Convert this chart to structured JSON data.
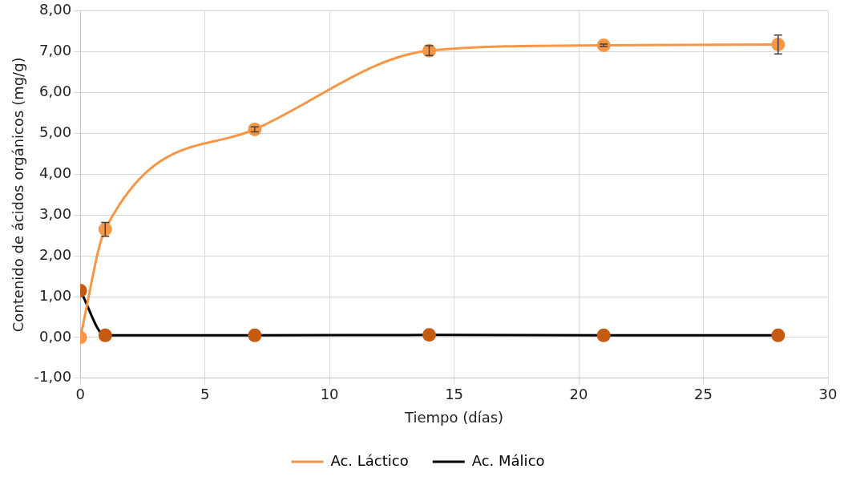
{
  "chart_data": {
    "type": "line",
    "xlabel": "Tiempo (días)",
    "ylabel": "Contenido de ácidos orgánicos (mg/g)",
    "x": [
      0,
      1,
      7,
      14,
      21,
      28
    ],
    "series": [
      {
        "name": "Ac. Láctico",
        "color": "#f79646",
        "values": [
          0,
          2.65,
          5.1,
          7.03,
          7.16,
          7.18
        ],
        "errors": [
          null,
          0.17,
          0.06,
          0.12,
          0.03,
          0.23
        ]
      },
      {
        "name": "Ac. Málico",
        "color": "#000000",
        "colors": [
          "#c55a11",
          "#c55a11",
          "#c55a11",
          "#c55a11",
          "#c55a11",
          "#c55a11"
        ],
        "values": [
          1.15,
          0.05,
          0.05,
          0.06,
          0.05,
          0.05
        ]
      }
    ],
    "xlim": [
      0,
      30
    ],
    "xticks": [
      0,
      5,
      10,
      15,
      20,
      25,
      30
    ],
    "ylim": [
      -1,
      8
    ],
    "yticks": [
      {
        "value": -1,
        "label": "-1,00"
      },
      {
        "value": 0,
        "label": "0,00"
      },
      {
        "value": 1,
        "label": "1,00"
      },
      {
        "value": 2,
        "label": "2,00"
      },
      {
        "value": 3,
        "label": "3,00"
      },
      {
        "value": 4,
        "label": "4,00"
      },
      {
        "value": 5,
        "label": "5,00"
      },
      {
        "value": 6,
        "label": "6,00"
      },
      {
        "value": 7,
        "label": "7,00"
      },
      {
        "value": 8,
        "label": "8,00"
      }
    ],
    "grid": true,
    "legend": "bottom",
    "marker": "circle",
    "line_style": "solid"
  }
}
